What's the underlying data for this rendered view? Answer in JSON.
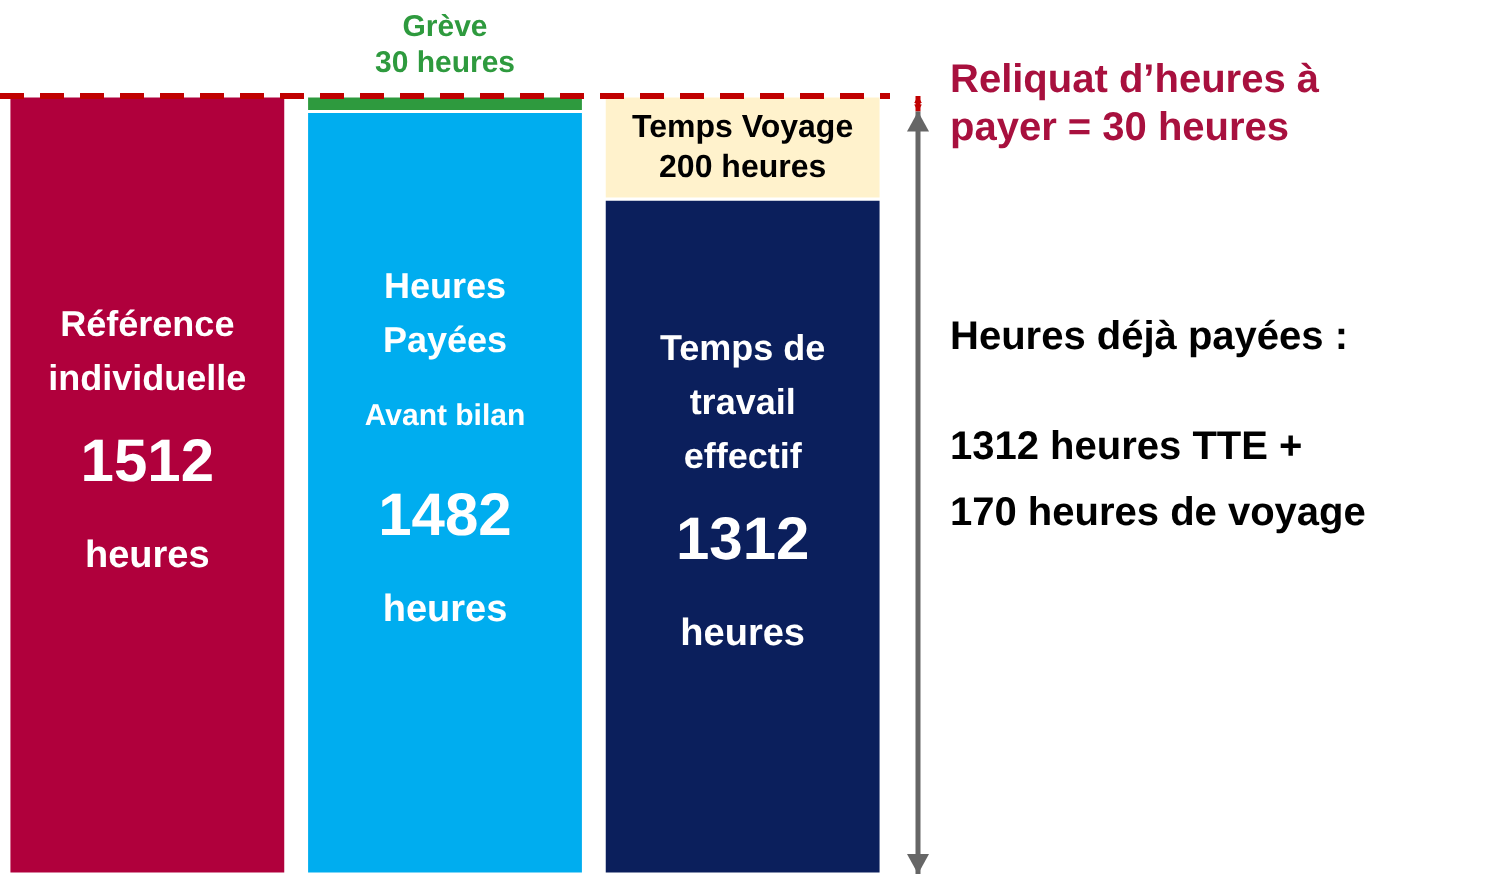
{
  "chart_data": {
    "type": "bar",
    "stacked": true,
    "categories": [
      null,
      null,
      null
    ],
    "series": [
      {
        "name": "Référence individuelle",
        "color": "#b0003c",
        "values": [
          1512,
          null,
          null
        ],
        "value_labels": [
          "1512 heures",
          null,
          null
        ]
      },
      {
        "name": "Heures Payées",
        "color": "#00adef",
        "values": [
          null,
          1482,
          null
        ],
        "value_labels": [
          null,
          "1482 heures",
          null
        ]
      },
      {
        "name": "Temps de travail effectif",
        "color": "#0b1f5c",
        "values": [
          null,
          null,
          1312
        ],
        "value_labels": [
          null,
          null,
          "1312 heures"
        ]
      },
      {
        "name": "Grève",
        "color": "#2e9a3e",
        "values": [
          null,
          30,
          null
        ],
        "value_labels": [
          null,
          "30 heures",
          null
        ]
      },
      {
        "name": "Temps Voyage",
        "color": "#fff2cc",
        "values": [
          null,
          null,
          200
        ],
        "value_labels": [
          null,
          null,
          "200 heures"
        ]
      }
    ],
    "ref_lines": [
      {
        "axis": "y",
        "value": 1512,
        "color": "#c00000",
        "line_style": "dashed"
      }
    ],
    "annotations": [
      "Avant bilan",
      "Reliquat d’heures à payer = 30 heures",
      "Heures déjà payées :",
      "1312 heures TTE +",
      "170 heures de voyage"
    ]
  }
}
